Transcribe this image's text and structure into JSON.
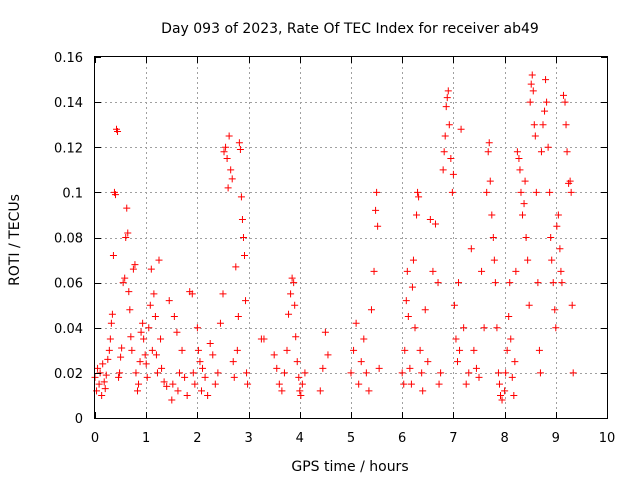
{
  "chart_data": {
    "type": "scatter",
    "title": "Day 093 of 2023, Rate Of TEC Index for receiver ab49",
    "xlabel": "GPS time / hours",
    "ylabel": "ROTI / TECUs",
    "xlim": [
      0,
      10
    ],
    "ylim": [
      0,
      0.16
    ],
    "x_ticks": [
      0,
      1,
      2,
      3,
      4,
      5,
      6,
      7,
      8,
      9,
      10
    ],
    "y_ticks": [
      0,
      0.02,
      0.04,
      0.06,
      0.08,
      0.1,
      0.12,
      0.14,
      0.16
    ],
    "x_tick_labels": [
      "0",
      "1",
      "2",
      "3",
      "4",
      "5",
      "6",
      "7",
      "8",
      "9",
      "10"
    ],
    "y_tick_labels": [
      "0",
      "0.02",
      "0.04",
      "0.06",
      "0.08",
      "0.1",
      "0.12",
      "0.14",
      "0.16"
    ],
    "grid": true,
    "marker": "+",
    "marker_color": "#ff0000",
    "series": [
      {
        "name": "ROTI",
        "points": [
          [
            0.0,
            0.018
          ],
          [
            0.03,
            0.012
          ],
          [
            0.05,
            0.022
          ],
          [
            0.08,
            0.015
          ],
          [
            0.1,
            0.02
          ],
          [
            0.13,
            0.01
          ],
          [
            0.15,
            0.024
          ],
          [
            0.18,
            0.016
          ],
          [
            0.2,
            0.013
          ],
          [
            0.22,
            0.019
          ],
          [
            0.25,
            0.026
          ],
          [
            0.28,
            0.03
          ],
          [
            0.3,
            0.035
          ],
          [
            0.32,
            0.042
          ],
          [
            0.34,
            0.046
          ],
          [
            0.36,
            0.072
          ],
          [
            0.38,
            0.1
          ],
          [
            0.4,
            0.099
          ],
          [
            0.42,
            0.128
          ],
          [
            0.44,
            0.127
          ],
          [
            0.46,
            0.018
          ],
          [
            0.48,
            0.02
          ],
          [
            0.5,
            0.027
          ],
          [
            0.52,
            0.031
          ],
          [
            0.55,
            0.06
          ],
          [
            0.58,
            0.062
          ],
          [
            0.6,
            0.08
          ],
          [
            0.62,
            0.093
          ],
          [
            0.64,
            0.082
          ],
          [
            0.66,
            0.056
          ],
          [
            0.68,
            0.048
          ],
          [
            0.7,
            0.036
          ],
          [
            0.72,
            0.03
          ],
          [
            0.75,
            0.066
          ],
          [
            0.78,
            0.068
          ],
          [
            0.8,
            0.02
          ],
          [
            0.83,
            0.012
          ],
          [
            0.85,
            0.015
          ],
          [
            0.88,
            0.025
          ],
          [
            0.9,
            0.038
          ],
          [
            0.93,
            0.042
          ],
          [
            0.95,
            0.035
          ],
          [
            0.98,
            0.028
          ],
          [
            1.0,
            0.024
          ],
          [
            1.02,
            0.018
          ],
          [
            1.05,
            0.04
          ],
          [
            1.08,
            0.05
          ],
          [
            1.1,
            0.066
          ],
          [
            1.12,
            0.03
          ],
          [
            1.15,
            0.055
          ],
          [
            1.18,
            0.045
          ],
          [
            1.2,
            0.028
          ],
          [
            1.22,
            0.02
          ],
          [
            1.25,
            0.07
          ],
          [
            1.28,
            0.035
          ],
          [
            1.3,
            0.022
          ],
          [
            1.35,
            0.016
          ],
          [
            1.4,
            0.014
          ],
          [
            1.45,
            0.052
          ],
          [
            1.5,
            0.008
          ],
          [
            1.52,
            0.015
          ],
          [
            1.55,
            0.045
          ],
          [
            1.6,
            0.038
          ],
          [
            1.62,
            0.012
          ],
          [
            1.65,
            0.02
          ],
          [
            1.7,
            0.03
          ],
          [
            1.75,
            0.018
          ],
          [
            1.8,
            0.01
          ],
          [
            1.85,
            0.056
          ],
          [
            1.9,
            0.055
          ],
          [
            1.92,
            0.02
          ],
          [
            1.95,
            0.015
          ],
          [
            2.0,
            0.04
          ],
          [
            2.02,
            0.03
          ],
          [
            2.05,
            0.025
          ],
          [
            2.08,
            0.012
          ],
          [
            2.1,
            0.022
          ],
          [
            2.15,
            0.018
          ],
          [
            2.2,
            0.01
          ],
          [
            2.25,
            0.033
          ],
          [
            2.3,
            0.028
          ],
          [
            2.35,
            0.015
          ],
          [
            2.4,
            0.02
          ],
          [
            2.45,
            0.042
          ],
          [
            2.5,
            0.055
          ],
          [
            2.52,
            0.118
          ],
          [
            2.55,
            0.12
          ],
          [
            2.58,
            0.115
          ],
          [
            2.6,
            0.102
          ],
          [
            2.62,
            0.125
          ],
          [
            2.65,
            0.11
          ],
          [
            2.68,
            0.106
          ],
          [
            2.7,
            0.025
          ],
          [
            2.72,
            0.018
          ],
          [
            2.75,
            0.067
          ],
          [
            2.78,
            0.03
          ],
          [
            2.8,
            0.045
          ],
          [
            2.82,
            0.122
          ],
          [
            2.84,
            0.119
          ],
          [
            2.86,
            0.098
          ],
          [
            2.88,
            0.088
          ],
          [
            2.9,
            0.08
          ],
          [
            2.92,
            0.072
          ],
          [
            2.94,
            0.052
          ],
          [
            2.96,
            0.02
          ],
          [
            2.98,
            0.015
          ],
          [
            3.25,
            0.035
          ],
          [
            3.3,
            0.035
          ],
          [
            3.5,
            0.028
          ],
          [
            3.55,
            0.022
          ],
          [
            3.6,
            0.015
          ],
          [
            3.65,
            0.012
          ],
          [
            3.7,
            0.02
          ],
          [
            3.75,
            0.03
          ],
          [
            3.78,
            0.046
          ],
          [
            3.82,
            0.055
          ],
          [
            3.85,
            0.062
          ],
          [
            3.88,
            0.06
          ],
          [
            3.9,
            0.05
          ],
          [
            3.92,
            0.036
          ],
          [
            3.95,
            0.025
          ],
          [
            3.98,
            0.018
          ],
          [
            4.0,
            0.012
          ],
          [
            4.02,
            0.01
          ],
          [
            4.05,
            0.015
          ],
          [
            4.1,
            0.02
          ],
          [
            4.4,
            0.012
          ],
          [
            4.45,
            0.022
          ],
          [
            4.5,
            0.038
          ],
          [
            4.55,
            0.028
          ],
          [
            5.0,
            0.02
          ],
          [
            5.05,
            0.03
          ],
          [
            5.1,
            0.042
          ],
          [
            5.15,
            0.015
          ],
          [
            5.2,
            0.025
          ],
          [
            5.25,
            0.035
          ],
          [
            5.3,
            0.02
          ],
          [
            5.35,
            0.012
          ],
          [
            5.4,
            0.048
          ],
          [
            5.45,
            0.065
          ],
          [
            5.48,
            0.092
          ],
          [
            5.5,
            0.1
          ],
          [
            5.52,
            0.085
          ],
          [
            5.55,
            0.022
          ],
          [
            6.0,
            0.02
          ],
          [
            6.03,
            0.015
          ],
          [
            6.05,
            0.03
          ],
          [
            6.08,
            0.052
          ],
          [
            6.1,
            0.065
          ],
          [
            6.12,
            0.045
          ],
          [
            6.15,
            0.022
          ],
          [
            6.18,
            0.015
          ],
          [
            6.2,
            0.058
          ],
          [
            6.22,
            0.07
          ],
          [
            6.25,
            0.04
          ],
          [
            6.28,
            0.09
          ],
          [
            6.3,
            0.1
          ],
          [
            6.32,
            0.098
          ],
          [
            6.35,
            0.03
          ],
          [
            6.38,
            0.02
          ],
          [
            6.4,
            0.012
          ],
          [
            6.45,
            0.048
          ],
          [
            6.5,
            0.025
          ],
          [
            6.55,
            0.088
          ],
          [
            6.6,
            0.065
          ],
          [
            6.65,
            0.086
          ],
          [
            6.7,
            0.06
          ],
          [
            6.72,
            0.015
          ],
          [
            6.75,
            0.02
          ],
          [
            6.8,
            0.11
          ],
          [
            6.82,
            0.118
          ],
          [
            6.84,
            0.125
          ],
          [
            6.86,
            0.138
          ],
          [
            6.88,
            0.142
          ],
          [
            6.9,
            0.145
          ],
          [
            6.92,
            0.13
          ],
          [
            6.95,
            0.115
          ],
          [
            6.98,
            0.1
          ],
          [
            7.0,
            0.108
          ],
          [
            7.02,
            0.05
          ],
          [
            7.05,
            0.035
          ],
          [
            7.08,
            0.025
          ],
          [
            7.1,
            0.06
          ],
          [
            7.12,
            0.03
          ],
          [
            7.15,
            0.128
          ],
          [
            7.2,
            0.04
          ],
          [
            7.25,
            0.015
          ],
          [
            7.3,
            0.02
          ],
          [
            7.35,
            0.075
          ],
          [
            7.4,
            0.03
          ],
          [
            7.45,
            0.022
          ],
          [
            7.5,
            0.018
          ],
          [
            7.55,
            0.065
          ],
          [
            7.6,
            0.04
          ],
          [
            7.65,
            0.1
          ],
          [
            7.68,
            0.118
          ],
          [
            7.7,
            0.122
          ],
          [
            7.72,
            0.105
          ],
          [
            7.75,
            0.09
          ],
          [
            7.78,
            0.08
          ],
          [
            7.8,
            0.07
          ],
          [
            7.82,
            0.06
          ],
          [
            7.85,
            0.04
          ],
          [
            7.88,
            0.02
          ],
          [
            7.9,
            0.015
          ],
          [
            7.92,
            0.01
          ],
          [
            7.95,
            0.008
          ],
          [
            8.0,
            0.012
          ],
          [
            8.02,
            0.02
          ],
          [
            8.05,
            0.03
          ],
          [
            8.08,
            0.045
          ],
          [
            8.1,
            0.06
          ],
          [
            8.12,
            0.035
          ],
          [
            8.15,
            0.018
          ],
          [
            8.18,
            0.01
          ],
          [
            8.2,
            0.025
          ],
          [
            8.22,
            0.065
          ],
          [
            8.25,
            0.118
          ],
          [
            8.28,
            0.115
          ],
          [
            8.3,
            0.11
          ],
          [
            8.32,
            0.1
          ],
          [
            8.35,
            0.09
          ],
          [
            8.38,
            0.095
          ],
          [
            8.4,
            0.105
          ],
          [
            8.42,
            0.08
          ],
          [
            8.45,
            0.07
          ],
          [
            8.48,
            0.05
          ],
          [
            8.5,
            0.14
          ],
          [
            8.52,
            0.148
          ],
          [
            8.54,
            0.152
          ],
          [
            8.56,
            0.145
          ],
          [
            8.58,
            0.13
          ],
          [
            8.6,
            0.125
          ],
          [
            8.62,
            0.1
          ],
          [
            8.65,
            0.06
          ],
          [
            8.68,
            0.03
          ],
          [
            8.7,
            0.02
          ],
          [
            8.72,
            0.118
          ],
          [
            8.75,
            0.13
          ],
          [
            8.78,
            0.136
          ],
          [
            8.8,
            0.15
          ],
          [
            8.82,
            0.14
          ],
          [
            8.85,
            0.12
          ],
          [
            8.88,
            0.1
          ],
          [
            8.9,
            0.08
          ],
          [
            8.92,
            0.07
          ],
          [
            8.95,
            0.06
          ],
          [
            8.98,
            0.048
          ],
          [
            9.0,
            0.04
          ],
          [
            9.02,
            0.085
          ],
          [
            9.05,
            0.09
          ],
          [
            9.08,
            0.075
          ],
          [
            9.1,
            0.065
          ],
          [
            9.12,
            0.06
          ],
          [
            9.15,
            0.143
          ],
          [
            9.18,
            0.14
          ],
          [
            9.2,
            0.13
          ],
          [
            9.22,
            0.118
          ],
          [
            9.25,
            0.104
          ],
          [
            9.28,
            0.105
          ],
          [
            9.3,
            0.1
          ],
          [
            9.32,
            0.05
          ],
          [
            9.34,
            0.02
          ]
        ]
      }
    ]
  }
}
